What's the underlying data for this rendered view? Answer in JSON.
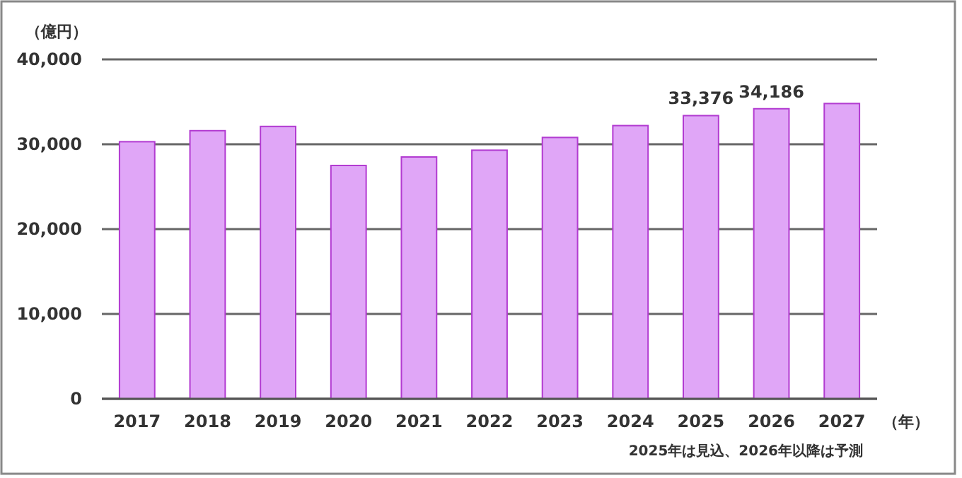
{
  "chart_data": {
    "type": "bar",
    "ylabel": "（億円）",
    "xlabel": "（年）",
    "categories": [
      "2017",
      "2018",
      "2019",
      "2020",
      "2021",
      "2022",
      "2023",
      "2024",
      "2025",
      "2026",
      "2027"
    ],
    "values": [
      30300,
      31600,
      32100,
      27500,
      28500,
      29300,
      30800,
      32200,
      33376,
      34186,
      34800
    ],
    "value_labels": [
      null,
      null,
      null,
      null,
      null,
      null,
      null,
      null,
      "33,376",
      "34,186",
      null
    ],
    "color": "#e0a6f7",
    "ylim": [
      0,
      40000
    ],
    "yticks": [
      {
        "value": 0,
        "label": "0"
      },
      {
        "value": 10000,
        "label": "10,000"
      },
      {
        "value": 20000,
        "label": "20,000"
      },
      {
        "value": 30000,
        "label": "30,000"
      },
      {
        "value": 40000,
        "label": "40,000"
      }
    ],
    "grid": "y",
    "annotations": [
      "2025年は見込、2026年以降は予測"
    ]
  }
}
